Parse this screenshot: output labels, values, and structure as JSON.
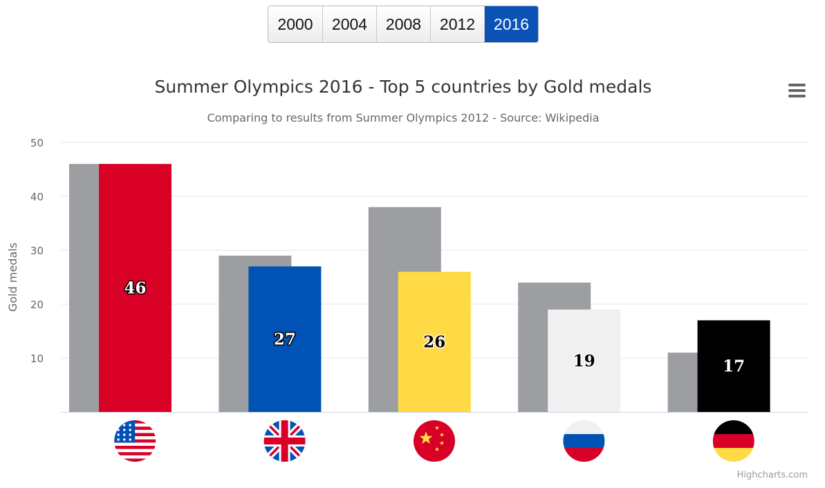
{
  "year_buttons": [
    {
      "label": "2000",
      "active": false
    },
    {
      "label": "2004",
      "active": false
    },
    {
      "label": "2008",
      "active": false
    },
    {
      "label": "2012",
      "active": false
    },
    {
      "label": "2016",
      "active": true
    }
  ],
  "colors": {
    "previous_series": "#9d9ea2",
    "active_button": "#0b52b7",
    "grid": "#e6e6e6",
    "axis_line": "#ccd6eb"
  },
  "credits": "Highcharts.com",
  "menu_icon": "hamburger-menu-icon",
  "chart_data": {
    "type": "bar",
    "title": "Summer Olympics 2016 - Top 5 countries by Gold medals",
    "subtitle": "Comparing to results from Summer Olympics 2012 - Source: Wikipedia",
    "ylabel": "Gold medals",
    "xlabel": "",
    "ylim": [
      0,
      50
    ],
    "yticks": [
      10,
      20,
      30,
      40,
      50
    ],
    "grid": true,
    "categories": [
      "us",
      "gb",
      "cn",
      "ru",
      "de"
    ],
    "category_icons": [
      "us-flag-icon",
      "gb-flag-icon",
      "cn-flag-icon",
      "ru-flag-icon",
      "de-flag-icon"
    ],
    "series": [
      {
        "values": [
          46,
          29,
          38,
          24,
          11
        ],
        "color": "#9d9ea2"
      },
      {
        "values": [
          46,
          27,
          26,
          19,
          17
        ],
        "colors": [
          "#d90026",
          "#0052b4",
          "#ffda44",
          "#f0f0f0",
          "#000000"
        ],
        "data_labels": true
      }
    ]
  }
}
